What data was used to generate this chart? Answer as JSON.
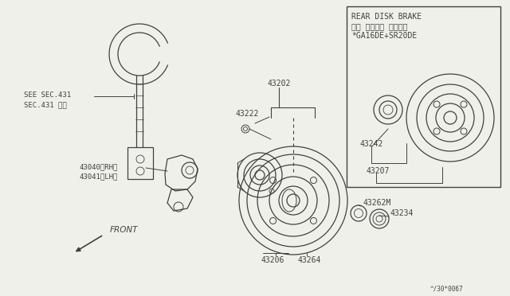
{
  "bg_color": "#f0f0eb",
  "line_color": "#404040",
  "fig_width": 6.4,
  "fig_height": 3.72,
  "dpi": 100,
  "rear_disk_label_line1": "REAR DISK BRAKE",
  "rear_disk_label_line2": "リヤ ディスク ブレーキ",
  "rear_disk_label_line3": "*GA16DE+SR20DE",
  "footnote": "^/30*0067"
}
